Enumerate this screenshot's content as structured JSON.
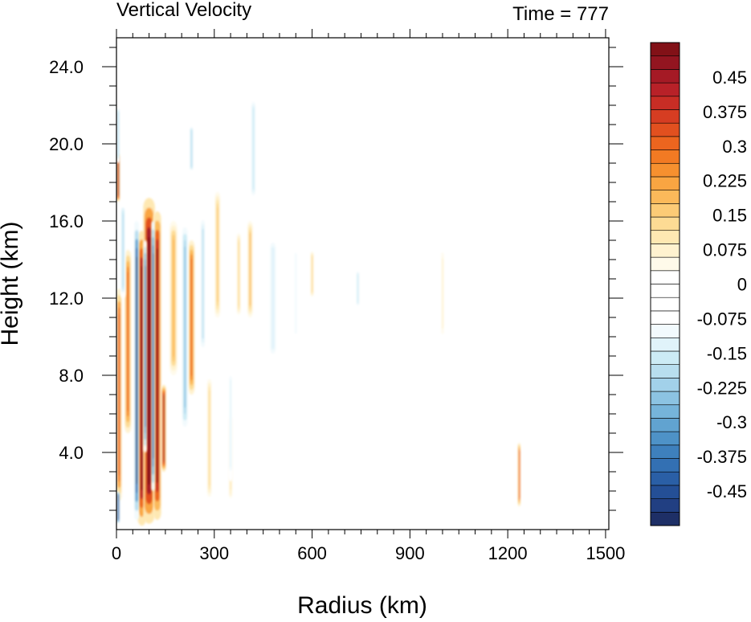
{
  "chart_data": {
    "type": "heatmap",
    "title": "Vertical Velocity",
    "subtitle": "Time = 777",
    "xlabel": "Radius (km)",
    "ylabel": "Height (km)",
    "xlim": [
      0,
      1510
    ],
    "ylim": [
      0,
      25.5
    ],
    "x_ticks": [
      {
        "value": 0,
        "label": "0"
      },
      {
        "value": 300,
        "label": "300"
      },
      {
        "value": 600,
        "label": "600"
      },
      {
        "value": 900,
        "label": "900"
      },
      {
        "value": 1200,
        "label": "1200"
      },
      {
        "value": 1500,
        "label": "1500"
      }
    ],
    "y_ticks": [
      {
        "value": 4,
        "label": "4.0"
      },
      {
        "value": 8,
        "label": "8.0"
      },
      {
        "value": 12,
        "label": "12.0"
      },
      {
        "value": 16,
        "label": "16.0"
      },
      {
        "value": 20,
        "label": "20.0"
      },
      {
        "value": 24,
        "label": "24.0"
      }
    ],
    "colorbar": {
      "min": -0.525,
      "max": 0.525,
      "step": 0.025,
      "labels": [
        {
          "value": 0.45,
          "label": "0.45"
        },
        {
          "value": 0.375,
          "label": "0.375"
        },
        {
          "value": 0.3,
          "label": "0.3"
        },
        {
          "value": 0.225,
          "label": "0.225"
        },
        {
          "value": 0.15,
          "label": "0.15"
        },
        {
          "value": 0.075,
          "label": "0.075"
        },
        {
          "value": 0,
          "label": "0"
        },
        {
          "value": -0.075,
          "label": "-0.075"
        },
        {
          "value": -0.15,
          "label": "-0.15"
        },
        {
          "value": -0.225,
          "label": "-0.225"
        },
        {
          "value": -0.3,
          "label": "-0.3"
        },
        {
          "value": -0.375,
          "label": "-0.375"
        },
        {
          "value": -0.45,
          "label": "-0.45"
        }
      ],
      "colors_low_to_high": [
        "#1e2f66",
        "#213f82",
        "#244f96",
        "#2a5fa6",
        "#3370b3",
        "#3e80bd",
        "#4e92c7",
        "#61a3d0",
        "#76b4da",
        "#8cc3e2",
        "#a2d1ea",
        "#b8deef",
        "#ccebf5",
        "#e0f3fa",
        "#f2fafd",
        "#ffffff",
        "#ffffff",
        "#ffffff",
        "#ffffff",
        "#fffaea",
        "#fff2cf",
        "#fee8b2",
        "#fddb94",
        "#fccb76",
        "#fbb95a",
        "#f9a542",
        "#f6902f",
        "#f27a23",
        "#ec651f",
        "#e2501f",
        "#d63d22",
        "#c82d25",
        "#b82128",
        "#a51a25",
        "#931520",
        "#821117"
      ]
    },
    "features": [
      {
        "kind": "updraft",
        "x": 78,
        "y0": 0.2,
        "y1": 15.5,
        "half_width": 14,
        "value": 0.52
      },
      {
        "kind": "updraft",
        "x": 100,
        "y0": 0.3,
        "y1": 17.2,
        "half_width": 18,
        "value": 0.55
      },
      {
        "kind": "updraft",
        "x": 125,
        "y0": 0.5,
        "y1": 16.5,
        "half_width": 12,
        "value": 0.5
      },
      {
        "kind": "updraft",
        "x": 145,
        "y0": 3.0,
        "y1": 7.5,
        "half_width": 7,
        "value": 0.45
      },
      {
        "kind": "updraft",
        "x": 8,
        "y0": 1.5,
        "y1": 12.5,
        "half_width": 8,
        "value": 0.35
      },
      {
        "kind": "updraft",
        "x": 35,
        "y0": 5.0,
        "y1": 14.5,
        "half_width": 10,
        "value": 0.3
      },
      {
        "kind": "updraft",
        "x": 5,
        "y0": 17.0,
        "y1": 19.5,
        "half_width": 5,
        "value": 0.45
      },
      {
        "kind": "updraft",
        "x": 230,
        "y0": 7.0,
        "y1": 15.0,
        "half_width": 10,
        "value": 0.3
      },
      {
        "kind": "updraft",
        "x": 175,
        "y0": 8.0,
        "y1": 16.0,
        "half_width": 12,
        "value": 0.2
      },
      {
        "kind": "updraft",
        "x": 285,
        "y0": 1.5,
        "y1": 8.0,
        "half_width": 8,
        "value": 0.12
      },
      {
        "kind": "updraft",
        "x": 310,
        "y0": 11.0,
        "y1": 17.5,
        "half_width": 8,
        "value": 0.15
      },
      {
        "kind": "updraft",
        "x": 375,
        "y0": 11.0,
        "y1": 15.5,
        "half_width": 7,
        "value": 0.12
      },
      {
        "kind": "updraft",
        "x": 410,
        "y0": 11.0,
        "y1": 16.0,
        "half_width": 8,
        "value": 0.18
      },
      {
        "kind": "updraft",
        "x": 600,
        "y0": 12.0,
        "y1": 14.5,
        "half_width": 6,
        "value": 0.12
      },
      {
        "kind": "updraft",
        "x": 350,
        "y0": 1.5,
        "y1": 6.0,
        "half_width": 6,
        "value": 0.1
      },
      {
        "kind": "updraft",
        "x": 1235,
        "y0": 1.2,
        "y1": 4.5,
        "half_width": 4,
        "value": 0.3
      },
      {
        "kind": "updraft",
        "x": 1000,
        "y0": 10.0,
        "y1": 14.5,
        "half_width": 4,
        "value": 0.08
      },
      {
        "kind": "downdraft",
        "x": 62,
        "y0": 0.5,
        "y1": 16.0,
        "half_width": 7,
        "value": -0.5
      },
      {
        "kind": "downdraft",
        "x": 88,
        "y0": 4.0,
        "y1": 15.0,
        "half_width": 5,
        "value": -0.4
      },
      {
        "kind": "downdraft",
        "x": 112,
        "y0": 2.0,
        "y1": 16.0,
        "half_width": 5,
        "value": -0.45
      },
      {
        "kind": "downdraft",
        "x": 5,
        "y0": 0.3,
        "y1": 2.0,
        "half_width": 5,
        "value": -0.45
      },
      {
        "kind": "downdraft",
        "x": 210,
        "y0": 5.0,
        "y1": 16.0,
        "half_width": 10,
        "value": -0.25
      },
      {
        "kind": "downdraft",
        "x": 20,
        "y0": 12.0,
        "y1": 17.0,
        "half_width": 8,
        "value": -0.2
      },
      {
        "kind": "downdraft",
        "x": 265,
        "y0": 9.0,
        "y1": 16.5,
        "half_width": 10,
        "value": -0.18
      },
      {
        "kind": "downdraft",
        "x": 230,
        "y0": 18.5,
        "y1": 21.0,
        "half_width": 7,
        "value": -0.2
      },
      {
        "kind": "downdraft",
        "x": 5,
        "y0": 19.0,
        "y1": 22.0,
        "half_width": 6,
        "value": -0.2
      },
      {
        "kind": "downdraft",
        "x": 480,
        "y0": 8.5,
        "y1": 15.5,
        "half_width": 22,
        "value": -0.12
      },
      {
        "kind": "downdraft",
        "x": 550,
        "y0": 9.5,
        "y1": 15.0,
        "half_width": 15,
        "value": -0.1
      },
      {
        "kind": "downdraft",
        "x": 740,
        "y0": 11.5,
        "y1": 13.5,
        "half_width": 6,
        "value": -0.15
      },
      {
        "kind": "downdraft",
        "x": 420,
        "y0": 17.0,
        "y1": 22.5,
        "half_width": 10,
        "value": -0.15
      },
      {
        "kind": "downdraft",
        "x": 350,
        "y0": 2.5,
        "y1": 8.5,
        "half_width": 8,
        "value": -0.12
      }
    ]
  }
}
